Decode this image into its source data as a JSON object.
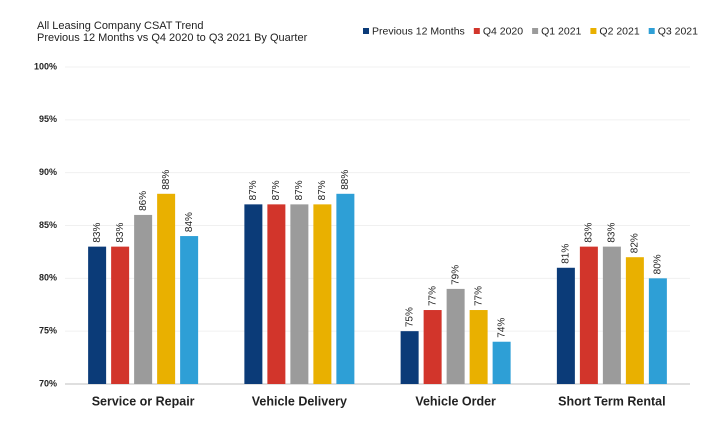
{
  "chart_data": {
    "type": "bar",
    "title": "All Leasing Company CSAT Trend",
    "subtitle": "Previous 12 Months vs Q4 2020 to Q3 2021 By Quarter",
    "categories": [
      "Service or Repair",
      "Vehicle Delivery",
      "Vehicle Order",
      "Short Term Rental"
    ],
    "series": [
      {
        "name": "Previous 12 Months",
        "color": "#0b3b78",
        "values": [
          83,
          87,
          75,
          81
        ],
        "value_labels": [
          "83%",
          "87%",
          "75%",
          "81%"
        ]
      },
      {
        "name": "Q4 2020",
        "color": "#d2352b",
        "values": [
          83,
          87,
          77,
          83
        ],
        "value_labels": [
          "83%",
          "87%",
          "77%",
          "83%"
        ]
      },
      {
        "name": "Q1 2021",
        "color": "#9b9b9b",
        "values": [
          86,
          87,
          79,
          83
        ],
        "value_labels": [
          "86%",
          "87%",
          "79%",
          "83%"
        ]
      },
      {
        "name": "Q2 2021",
        "color": "#e9b000",
        "values": [
          88,
          87,
          77,
          82
        ],
        "value_labels": [
          "88%",
          "87%",
          "77%",
          "82%"
        ]
      },
      {
        "name": "Q3 2021",
        "color": "#2e9fd6",
        "values": [
          84,
          88,
          74,
          80
        ],
        "value_labels": [
          "84%",
          "88%",
          "74%",
          "80%"
        ]
      }
    ],
    "ylim": [
      70,
      100
    ],
    "yticks": [
      {
        "value": 70,
        "label": "70%"
      },
      {
        "value": 75,
        "label": "75%"
      },
      {
        "value": 80,
        "label": "80%"
      },
      {
        "value": 85,
        "label": "85%"
      },
      {
        "value": 90,
        "label": "90%"
      },
      {
        "value": 95,
        "label": "95%"
      },
      {
        "value": 100,
        "label": "100%"
      }
    ],
    "grid": true,
    "legend": "top-right"
  }
}
